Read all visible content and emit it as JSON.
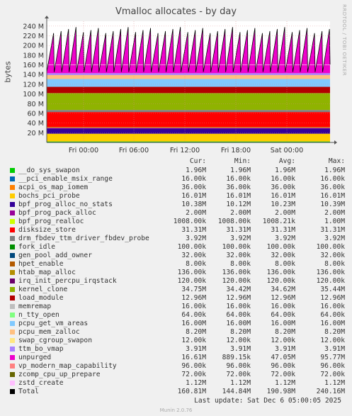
{
  "chart_data": {
    "type": "area",
    "title": "Vmalloc allocates - by day",
    "ylabel": "bytes",
    "ylim": [
      0,
      250000000
    ],
    "yticks": [
      20000000,
      40000000,
      60000000,
      80000000,
      100000000,
      120000000,
      140000000,
      160000000,
      180000000,
      200000000,
      220000000,
      240000000
    ],
    "ytick_labels": [
      "20 M",
      "40 M",
      "60 M",
      "80 M",
      "100 M",
      "120 M",
      "140 M",
      "160 M",
      "180 M",
      "200 M",
      "220 M",
      "240 M"
    ],
    "xticks": [
      {
        "label": "Fri 00:00",
        "t": 0.15
      },
      {
        "label": "Fri 06:00",
        "t": 0.349
      },
      {
        "label": "Fri 12:00",
        "t": 0.548
      },
      {
        "label": "Fri 18:00",
        "t": 0.747
      },
      {
        "label": "Sat 00:00",
        "t": 0.946
      }
    ],
    "grid": true,
    "side_text": "RRDTOOL / TOBI OETIKER",
    "columns": [
      "Cur:",
      "Min:",
      "Avg:",
      "Max:"
    ],
    "series": [
      {
        "name": "__do_sys_swapon",
        "color": "#00cc00",
        "cur": "1.96M",
        "min": "1.96M",
        "avg": "1.96M",
        "max": "1.96M",
        "value": 1960000
      },
      {
        "name": "__pci_enable_msix_range",
        "color": "#0066b3",
        "cur": "16.00k",
        "min": "16.00k",
        "avg": "16.00k",
        "max": "16.00k",
        "value": 16000
      },
      {
        "name": "acpi_os_map_iomem",
        "color": "#ff8000",
        "cur": "36.00k",
        "min": "36.00k",
        "avg": "36.00k",
        "max": "36.00k",
        "value": 36000
      },
      {
        "name": "bochs_pci_probe",
        "color": "#ffcc00",
        "cur": "16.01M",
        "min": "16.01M",
        "avg": "16.01M",
        "max": "16.01M",
        "value": 16010000
      },
      {
        "name": "bpf_prog_alloc_no_stats",
        "color": "#330099",
        "cur": "10.38M",
        "min": "10.12M",
        "avg": "10.23M",
        "max": "10.39M",
        "value": 10380000
      },
      {
        "name": "bpf_prog_pack_alloc",
        "color": "#990099",
        "cur": "2.00M",
        "min": "2.00M",
        "avg": "2.00M",
        "max": "2.00M",
        "value": 2000000
      },
      {
        "name": "bpf_prog_realloc",
        "color": "#ccff00",
        "cur": "1008.00k",
        "min": "1008.00k",
        "avg": "1008.21k",
        "max": "1.00M",
        "value": 1008000
      },
      {
        "name": "disksize_store",
        "color": "#ff0000",
        "cur": "31.31M",
        "min": "31.31M",
        "avg": "31.31M",
        "max": "31.31M",
        "value": 31310000
      },
      {
        "name": "drm_fbdev_ttm_driver_fbdev_probe",
        "color": "#808080",
        "cur": "3.92M",
        "min": "3.92M",
        "avg": "3.92M",
        "max": "3.92M",
        "value": 3920000
      },
      {
        "name": "fork_idle",
        "color": "#008f00",
        "cur": "100.00k",
        "min": "100.00k",
        "avg": "100.00k",
        "max": "100.00k",
        "value": 100000
      },
      {
        "name": "gen_pool_add_owner",
        "color": "#00487d",
        "cur": "32.00k",
        "min": "32.00k",
        "avg": "32.00k",
        "max": "32.00k",
        "value": 32000
      },
      {
        "name": "hpet_enable",
        "color": "#b35a00",
        "cur": "8.00k",
        "min": "8.00k",
        "avg": "8.00k",
        "max": "8.00k",
        "value": 8000
      },
      {
        "name": "htab_map_alloc",
        "color": "#b38f00",
        "cur": "136.00k",
        "min": "136.00k",
        "avg": "136.00k",
        "max": "136.00k",
        "value": 136000
      },
      {
        "name": "irq_init_percpu_irqstack",
        "color": "#6b006b",
        "cur": "120.00k",
        "min": "120.00k",
        "avg": "120.00k",
        "max": "120.00k",
        "value": 120000
      },
      {
        "name": "kernel_clone",
        "color": "#8fb300",
        "cur": "34.75M",
        "min": "34.42M",
        "avg": "34.62M",
        "max": "35.44M",
        "value": 34750000
      },
      {
        "name": "load_module",
        "color": "#b30000",
        "cur": "12.96M",
        "min": "12.96M",
        "avg": "12.96M",
        "max": "12.96M",
        "value": 12960000
      },
      {
        "name": "memremap",
        "color": "#bebebe",
        "cur": "16.00k",
        "min": "16.00k",
        "avg": "16.00k",
        "max": "16.00k",
        "value": 16000
      },
      {
        "name": "n_tty_open",
        "color": "#80ff80",
        "cur": "64.00k",
        "min": "64.00k",
        "avg": "64.00k",
        "max": "64.00k",
        "value": 64000
      },
      {
        "name": "pcpu_get_vm_areas",
        "color": "#80c9ff",
        "cur": "16.00M",
        "min": "16.00M",
        "avg": "16.00M",
        "max": "16.00M",
        "value": 16000000
      },
      {
        "name": "pcpu_mem_zalloc",
        "color": "#ffc080",
        "cur": "8.20M",
        "min": "8.20M",
        "avg": "8.20M",
        "max": "8.20M",
        "value": 8200000
      },
      {
        "name": "swap_cgroup_swapon",
        "color": "#ffe680",
        "cur": "12.00k",
        "min": "12.00k",
        "avg": "12.00k",
        "max": "12.00k",
        "value": 12000
      },
      {
        "name": "ttm_bo_vmap",
        "color": "#aa80ff",
        "cur": "3.91M",
        "min": "3.91M",
        "avg": "3.91M",
        "max": "3.91M",
        "value": 3910000
      },
      {
        "name": "unpurged",
        "color": "#ee00cc",
        "cur": "16.61M",
        "min": "889.15k",
        "avg": "47.05M",
        "max": "95.77M",
        "value": 16610000
      },
      {
        "name": "vp_modern_map_capability",
        "color": "#ff8080",
        "cur": "96.00k",
        "min": "96.00k",
        "avg": "96.00k",
        "max": "96.00k",
        "value": 96000
      },
      {
        "name": "zcomp_cpu_up_prepare",
        "color": "#666600",
        "cur": "72.00k",
        "min": "72.00k",
        "avg": "72.00k",
        "max": "72.00k",
        "value": 72000
      },
      {
        "name": "zstd_create",
        "color": "#ffbfff",
        "cur": "1.12M",
        "min": "1.12M",
        "avg": "1.12M",
        "max": "1.12M",
        "value": 1120000
      }
    ],
    "total": {
      "name": "Total",
      "color": "#000000",
      "cur": "160.81M",
      "min": "144.84M",
      "avg": "190.98M",
      "max": "240.16M"
    }
  },
  "footer": {
    "last_update": "Last update: Sat Dec  6 05:00:05 2025",
    "munin": "Munin 2.0.76"
  }
}
